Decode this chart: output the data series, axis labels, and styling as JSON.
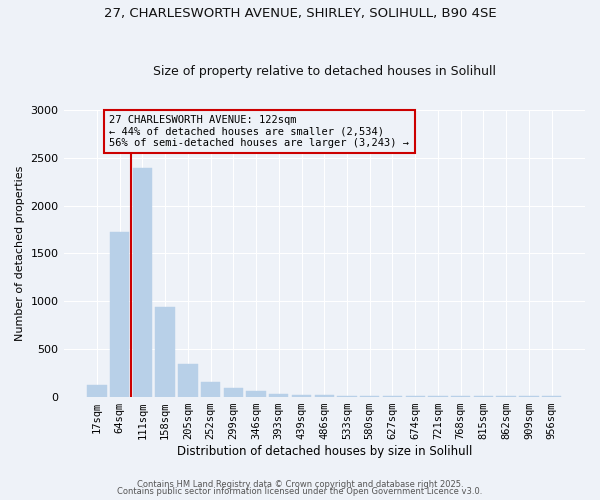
{
  "title1": "27, CHARLESWORTH AVENUE, SHIRLEY, SOLIHULL, B90 4SE",
  "title2": "Size of property relative to detached houses in Solihull",
  "xlabel": "Distribution of detached houses by size in Solihull",
  "ylabel": "Number of detached properties",
  "categories": [
    "17sqm",
    "64sqm",
    "111sqm",
    "158sqm",
    "205sqm",
    "252sqm",
    "299sqm",
    "346sqm",
    "393sqm",
    "439sqm",
    "486sqm",
    "533sqm",
    "580sqm",
    "627sqm",
    "674sqm",
    "721sqm",
    "768sqm",
    "815sqm",
    "862sqm",
    "909sqm",
    "956sqm"
  ],
  "values": [
    120,
    1720,
    2390,
    940,
    340,
    150,
    85,
    55,
    30,
    20,
    15,
    10,
    8,
    5,
    4,
    3,
    2,
    2,
    1,
    1,
    1
  ],
  "bar_color": "#b8d0e8",
  "bar_edgecolor": "#b8d0e8",
  "vline_x_index": 2,
  "vline_color": "#cc0000",
  "annotation_title": "27 CHARLESWORTH AVENUE: 122sqm",
  "annotation_line1": "← 44% of detached houses are smaller (2,534)",
  "annotation_line2": "56% of semi-detached houses are larger (3,243) →",
  "annotation_box_edgecolor": "#cc0000",
  "annotation_text_color": "#000000",
  "ylim": [
    0,
    3000
  ],
  "yticks": [
    0,
    500,
    1000,
    1500,
    2000,
    2500,
    3000
  ],
  "bg_color": "#eef2f8",
  "grid_color": "#ffffff",
  "footer1": "Contains HM Land Registry data © Crown copyright and database right 2025.",
  "footer2": "Contains public sector information licensed under the Open Government Licence v3.0."
}
